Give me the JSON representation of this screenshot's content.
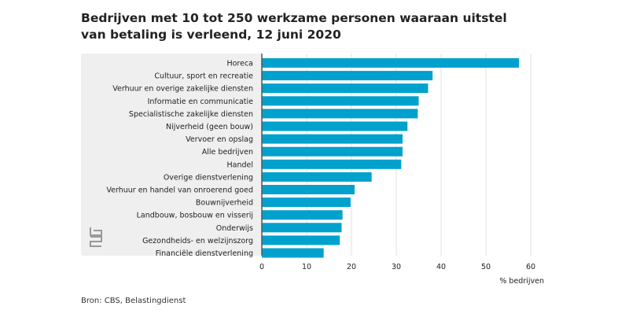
{
  "chart_data": {
    "type": "bar",
    "orientation": "horizontal",
    "title": "Bedrijven met 10 tot 250 werkzame personen waaraan uitstel van betaling is verleend, 12 juni 2020",
    "categories": [
      "Horeca",
      "Cultuur, sport en recreatie",
      "Verhuur en overige zakelijke diensten",
      "Informatie en communicatie",
      "Specialistische zakelijke diensten",
      "Nijverheid (geen bouw)",
      "Vervoer en opslag",
      "Alle bedrijven",
      "Handel",
      "Overige dienstverlening",
      "Verhuur en handel van onroerend goed",
      "Bouwnijverheid",
      "Landbouw, bosbouw en visserij",
      "Onderwijs",
      "Gezondheids- en welzijnszorg",
      "Financiële dienstverlening"
    ],
    "values": [
      57.4,
      38.1,
      37.1,
      35.0,
      34.8,
      32.5,
      31.4,
      31.4,
      31.1,
      24.5,
      20.7,
      19.8,
      18.0,
      17.8,
      17.4,
      13.8
    ],
    "xlabel": "% bedrijven",
    "ylabel": "",
    "xlim": [
      0,
      60
    ],
    "xticks": [
      "0",
      "10",
      "20",
      "30",
      "40",
      "50",
      "60"
    ],
    "grid": true,
    "bar_color": "#00a1cd",
    "source": "Bron: CBS, Belastingdienst"
  }
}
